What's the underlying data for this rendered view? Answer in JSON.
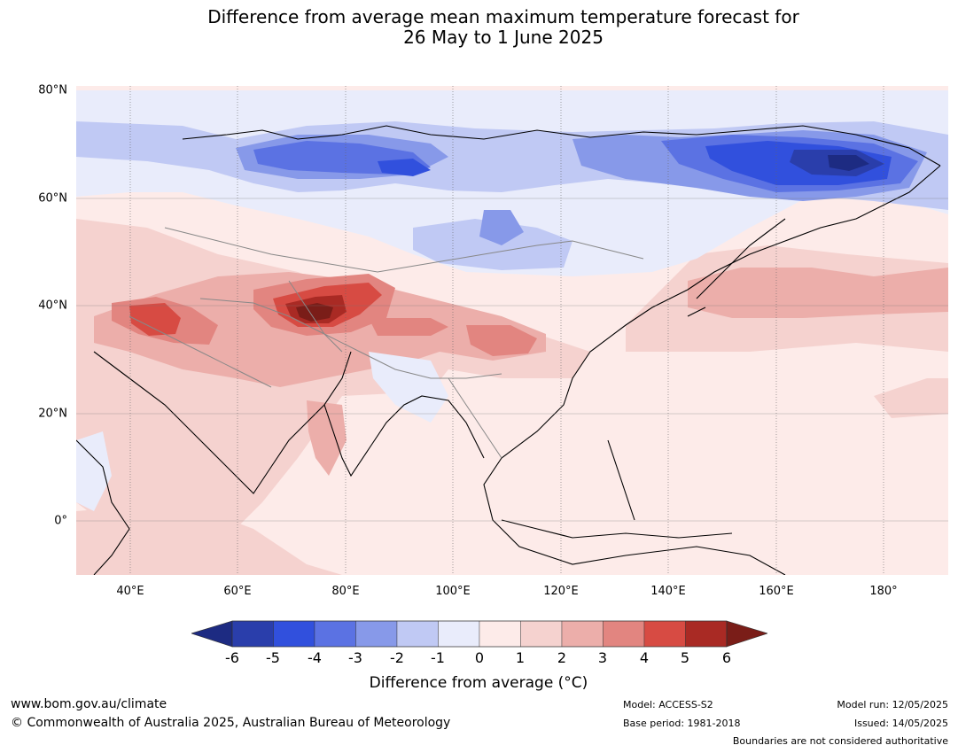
{
  "title": {
    "line1": "Difference from average mean maximum temperature forecast for",
    "line2": "26 May to 1 June 2025"
  },
  "map": {
    "lat_labels": [
      "80°N",
      "60°N",
      "40°N",
      "20°N",
      "0°"
    ],
    "lon_labels": [
      "40°E",
      "60°E",
      "80°E",
      "100°E",
      "120°E",
      "140°E",
      "160°E",
      "180°"
    ],
    "extent": {
      "lon_min": 30,
      "lon_max": 192,
      "lat_min": -10,
      "lat_max": 81
    },
    "gridlines": "dotted",
    "colors": {
      "minus6": "#1d2b82",
      "minus5": "#2a3eab",
      "minus4": "#3150dd",
      "minus3": "#5b72e3",
      "minus2": "#8799e9",
      "minus1": "#c0c9f4",
      "zero_minus": "#e9ecfb",
      "zero_plus": "#fdebe9",
      "plus1": "#f5d2cf",
      "plus2": "#ecaeaa",
      "plus3": "#e28580",
      "plus4": "#d74b43",
      "plus5": "#a92a24",
      "plus6": "#7a1d18"
    }
  },
  "colorbar": {
    "ticks": [
      "-6",
      "-5",
      "-4",
      "-3",
      "-2",
      "-1",
      "0",
      "1",
      "2",
      "3",
      "4",
      "5",
      "6"
    ],
    "colors": [
      "#2a3eab",
      "#3150dd",
      "#5b72e3",
      "#8799e9",
      "#c0c9f4",
      "#e9ecfb",
      "#fdebe9",
      "#f5d2cf",
      "#ecaeaa",
      "#e28580",
      "#d74b43",
      "#a92a24"
    ],
    "extend_low_color": "#1d2b82",
    "extend_high_color": "#7a1d18",
    "label": "Difference from average (°C)"
  },
  "footer": {
    "website": "www.bom.gov.au/climate",
    "copyright": "© Commonwealth of Australia 2025, Australian Bureau of Meteorology",
    "model": "Model: ACCESS-S2",
    "base_period": "Base period: 1981-2018",
    "model_run": "Model run: 12/05/2025",
    "issued": "Issued: 14/05/2025",
    "boundaries_note": "Boundaries are not considered authoritative"
  }
}
